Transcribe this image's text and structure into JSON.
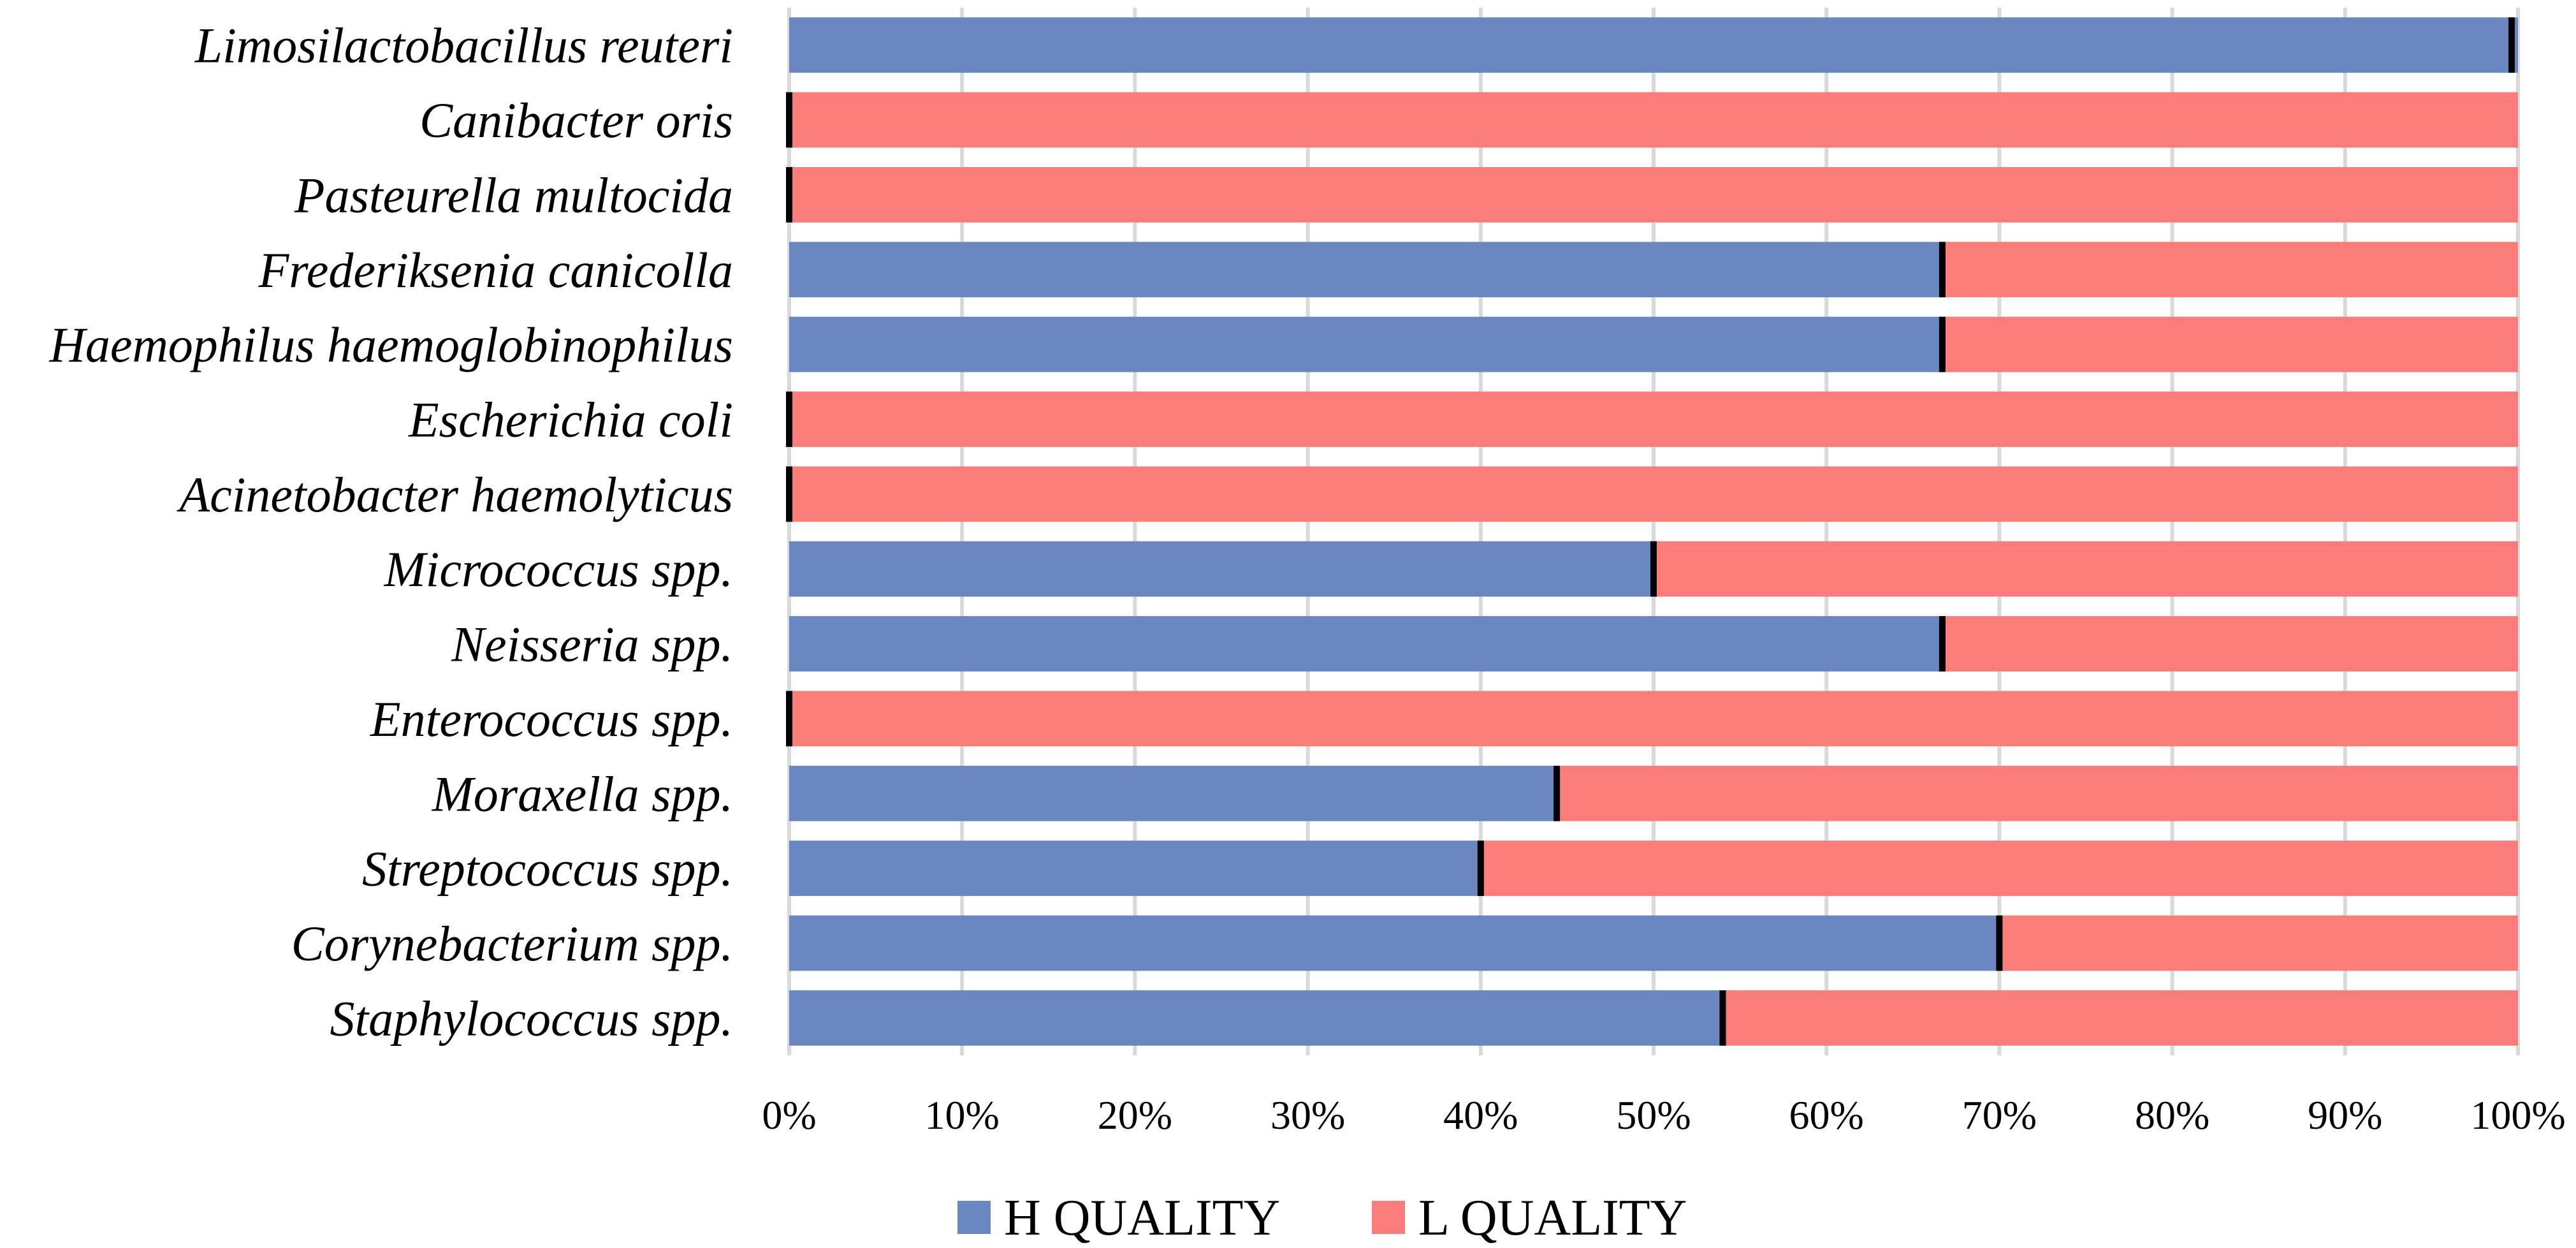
{
  "chart_data": {
    "type": "bar",
    "orientation": "horizontal",
    "stacked": "100%",
    "categories": [
      "Limosilactobacillus reuteri",
      "Canibacter oris",
      "Pasteurella multocida",
      "Frederiksenia canicolla",
      "Haemophilus haemoglobinophilus",
      "Escherichia coli",
      "Acinetobacter haemolyticus",
      "Micrococcus spp.",
      "Neisseria spp.",
      "Enterococcus spp.",
      "Moraxella spp.",
      "Streptococcus spp.",
      "Corynebacterium spp.",
      "Staphylococcus spp."
    ],
    "series": [
      {
        "name": "H QUALITY",
        "color": "#6a87c2",
        "values": [
          100,
          0,
          0,
          66.7,
          66.7,
          0,
          0,
          50,
          66.7,
          0,
          44.4,
          40,
          70,
          54
        ]
      },
      {
        "name": "L QUALITY",
        "color": "#fc7b7b",
        "values": [
          0,
          100,
          100,
          33.3,
          33.3,
          100,
          100,
          50,
          33.3,
          100,
          55.6,
          60,
          30,
          46
        ]
      }
    ],
    "x_ticks": [
      "0%",
      "10%",
      "20%",
      "30%",
      "40%",
      "50%",
      "60%",
      "70%",
      "80%",
      "90%",
      "100%"
    ],
    "xlim": [
      0,
      100
    ],
    "grid": "vertical",
    "legend_position": "bottom",
    "title": "",
    "xlabel": "",
    "ylabel": ""
  }
}
